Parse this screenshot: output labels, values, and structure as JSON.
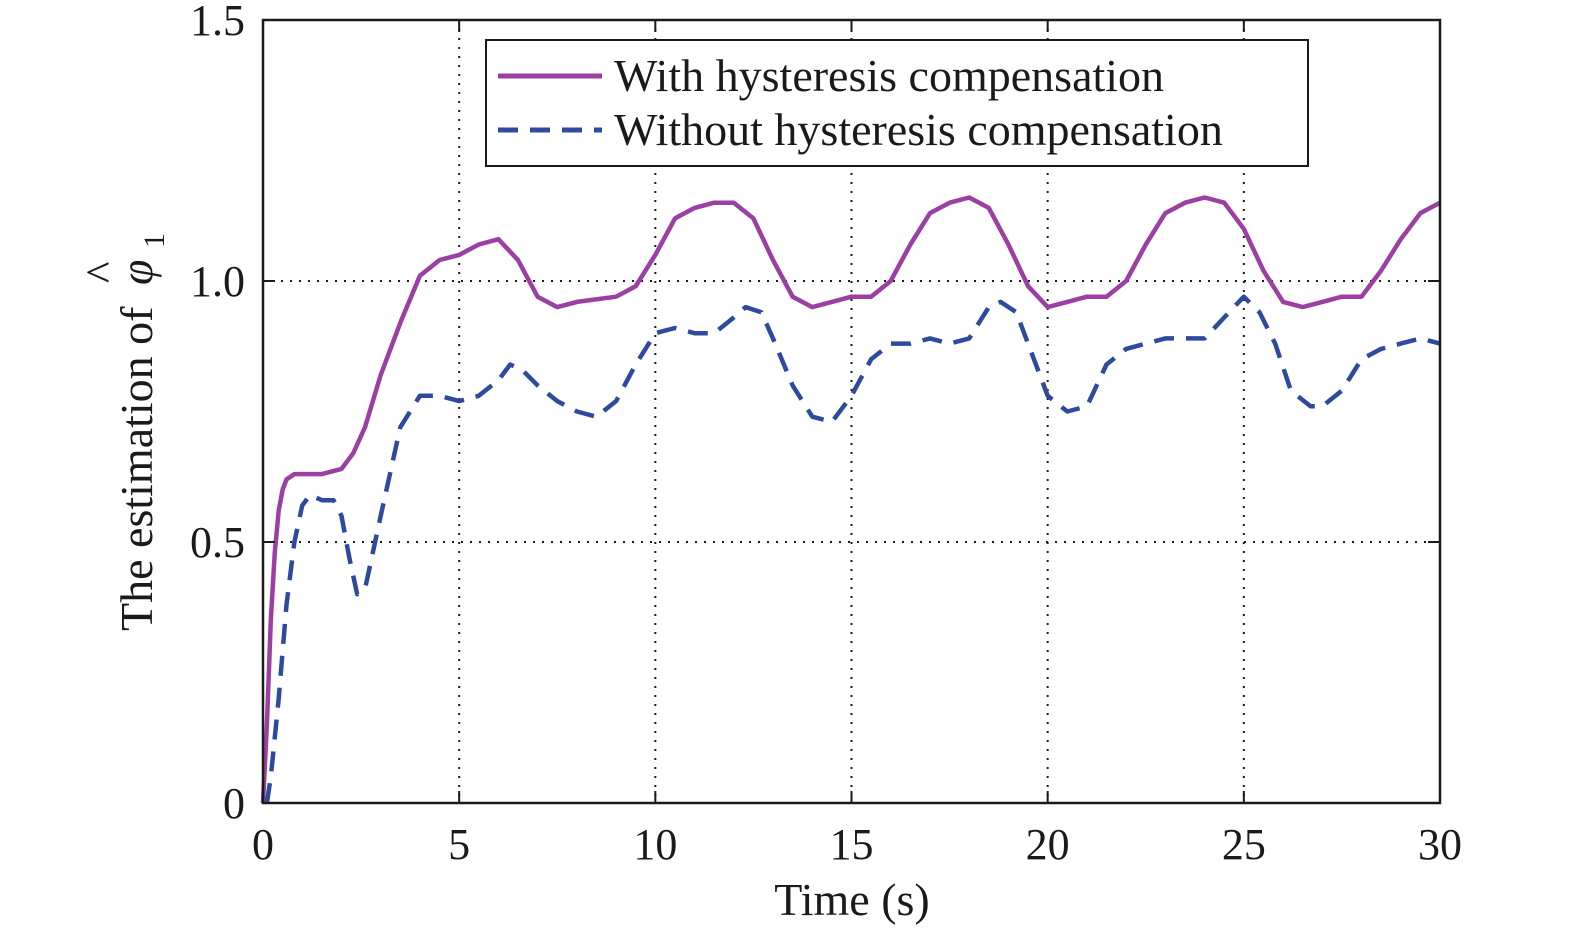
{
  "chart_data": {
    "type": "line",
    "xlabel": "Time (s)",
    "ylabel": "The estimation of",
    "ylabel_symbol": "φ",
    "ylabel_hat": "^",
    "ylabel_subscript": "1",
    "xlim": [
      0,
      30
    ],
    "ylim": [
      0,
      1.5
    ],
    "x_ticks": [
      0,
      5,
      10,
      15,
      20,
      25,
      30
    ],
    "x_tick_labels": [
      "0",
      "5",
      "10",
      "15",
      "20",
      "25",
      "30"
    ],
    "y_ticks": [
      0,
      0.5,
      1.0,
      1.5
    ],
    "y_tick_labels": [
      "0",
      "0.5",
      "1.0",
      "1.5"
    ],
    "grid": true,
    "legend_position": "top-right",
    "series": [
      {
        "name": "With hysteresis compensation",
        "color": "#9b3fa3",
        "style": "solid",
        "points": [
          [
            0,
            0
          ],
          [
            0.1,
            0.15
          ],
          [
            0.2,
            0.35
          ],
          [
            0.3,
            0.48
          ],
          [
            0.4,
            0.56
          ],
          [
            0.5,
            0.6
          ],
          [
            0.6,
            0.62
          ],
          [
            0.8,
            0.63
          ],
          [
            1.0,
            0.63
          ],
          [
            1.5,
            0.63
          ],
          [
            2.0,
            0.64
          ],
          [
            2.3,
            0.67
          ],
          [
            2.6,
            0.72
          ],
          [
            3.0,
            0.82
          ],
          [
            3.5,
            0.92
          ],
          [
            4.0,
            1.01
          ],
          [
            4.5,
            1.04
          ],
          [
            5.0,
            1.05
          ],
          [
            5.5,
            1.07
          ],
          [
            6.0,
            1.08
          ],
          [
            6.5,
            1.04
          ],
          [
            7.0,
            0.97
          ],
          [
            7.5,
            0.95
          ],
          [
            8.0,
            0.96
          ],
          [
            9.0,
            0.97
          ],
          [
            9.5,
            0.99
          ],
          [
            10.0,
            1.05
          ],
          [
            10.5,
            1.12
          ],
          [
            11.0,
            1.14
          ],
          [
            11.5,
            1.15
          ],
          [
            12.0,
            1.15
          ],
          [
            12.5,
            1.12
          ],
          [
            13.0,
            1.04
          ],
          [
            13.5,
            0.97
          ],
          [
            14.0,
            0.95
          ],
          [
            14.5,
            0.96
          ],
          [
            15.0,
            0.97
          ],
          [
            15.5,
            0.97
          ],
          [
            16.0,
            1.0
          ],
          [
            16.5,
            1.07
          ],
          [
            17.0,
            1.13
          ],
          [
            17.5,
            1.15
          ],
          [
            18.0,
            1.16
          ],
          [
            18.5,
            1.14
          ],
          [
            19.0,
            1.07
          ],
          [
            19.5,
            0.99
          ],
          [
            20.0,
            0.95
          ],
          [
            20.5,
            0.96
          ],
          [
            21.0,
            0.97
          ],
          [
            21.5,
            0.97
          ],
          [
            22.0,
            1.0
          ],
          [
            22.5,
            1.07
          ],
          [
            23.0,
            1.13
          ],
          [
            23.5,
            1.15
          ],
          [
            24.0,
            1.16
          ],
          [
            24.5,
            1.15
          ],
          [
            25.0,
            1.1
          ],
          [
            25.5,
            1.02
          ],
          [
            26.0,
            0.96
          ],
          [
            26.5,
            0.95
          ],
          [
            27.0,
            0.96
          ],
          [
            27.5,
            0.97
          ],
          [
            28.0,
            0.97
          ],
          [
            28.5,
            1.02
          ],
          [
            29.0,
            1.08
          ],
          [
            29.5,
            1.13
          ],
          [
            30.0,
            1.15
          ]
        ]
      },
      {
        "name": "Without hysteresis compensation",
        "color": "#2e4a9e",
        "style": "dashed",
        "points": [
          [
            0.1,
            0
          ],
          [
            0.2,
            0.05
          ],
          [
            0.4,
            0.2
          ],
          [
            0.6,
            0.38
          ],
          [
            0.8,
            0.5
          ],
          [
            1.0,
            0.57
          ],
          [
            1.2,
            0.59
          ],
          [
            1.5,
            0.58
          ],
          [
            1.8,
            0.58
          ],
          [
            2.0,
            0.55
          ],
          [
            2.2,
            0.47
          ],
          [
            2.4,
            0.4
          ],
          [
            2.6,
            0.41
          ],
          [
            3.0,
            0.55
          ],
          [
            3.5,
            0.72
          ],
          [
            4.0,
            0.78
          ],
          [
            4.5,
            0.78
          ],
          [
            5.0,
            0.77
          ],
          [
            5.5,
            0.78
          ],
          [
            6.0,
            0.81
          ],
          [
            6.3,
            0.84
          ],
          [
            6.6,
            0.83
          ],
          [
            7.0,
            0.8
          ],
          [
            7.5,
            0.77
          ],
          [
            8.0,
            0.75
          ],
          [
            8.5,
            0.74
          ],
          [
            9.0,
            0.77
          ],
          [
            9.5,
            0.84
          ],
          [
            10.0,
            0.9
          ],
          [
            10.5,
            0.91
          ],
          [
            11.0,
            0.9
          ],
          [
            11.5,
            0.9
          ],
          [
            12.0,
            0.93
          ],
          [
            12.3,
            0.95
          ],
          [
            12.7,
            0.94
          ],
          [
            13.0,
            0.89
          ],
          [
            13.5,
            0.8
          ],
          [
            14.0,
            0.74
          ],
          [
            14.5,
            0.73
          ],
          [
            15.0,
            0.78
          ],
          [
            15.5,
            0.85
          ],
          [
            16.0,
            0.88
          ],
          [
            16.5,
            0.88
          ],
          [
            17.0,
            0.89
          ],
          [
            17.5,
            0.88
          ],
          [
            18.0,
            0.89
          ],
          [
            18.5,
            0.95
          ],
          [
            18.8,
            0.96
          ],
          [
            19.2,
            0.94
          ],
          [
            19.6,
            0.86
          ],
          [
            20.0,
            0.78
          ],
          [
            20.5,
            0.75
          ],
          [
            21.0,
            0.76
          ],
          [
            21.5,
            0.84
          ],
          [
            22.0,
            0.87
          ],
          [
            22.5,
            0.88
          ],
          [
            23.0,
            0.89
          ],
          [
            23.5,
            0.89
          ],
          [
            24.0,
            0.89
          ],
          [
            24.5,
            0.93
          ],
          [
            25.0,
            0.97
          ],
          [
            25.4,
            0.94
          ],
          [
            25.8,
            0.88
          ],
          [
            26.2,
            0.79
          ],
          [
            26.7,
            0.76
          ],
          [
            27.0,
            0.76
          ],
          [
            27.5,
            0.79
          ],
          [
            28.0,
            0.85
          ],
          [
            28.5,
            0.87
          ],
          [
            29.0,
            0.88
          ],
          [
            29.5,
            0.89
          ],
          [
            30.0,
            0.88
          ]
        ]
      }
    ]
  }
}
